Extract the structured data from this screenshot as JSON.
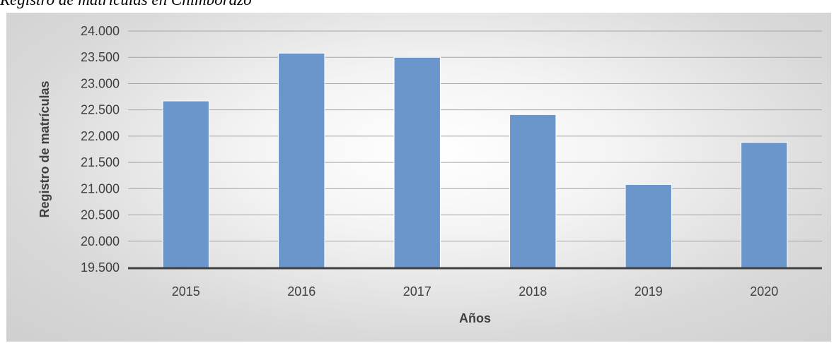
{
  "caption": "Registro de matrículas en Chimborazo",
  "chart_data": {
    "type": "bar",
    "categories": [
      "2015",
      "2016",
      "2017",
      "2018",
      "2019",
      "2020"
    ],
    "values": [
      22670,
      23580,
      23500,
      22410,
      21080,
      21880
    ],
    "title": "",
    "xlabel": "Años",
    "ylabel": "Registro de matrículas",
    "ylim": [
      19500,
      24000
    ],
    "yticks": [
      19500,
      20000,
      20500,
      21000,
      21500,
      22000,
      22500,
      23000,
      23500,
      24000
    ],
    "ytick_labels": [
      "19.500",
      "20.000",
      "20.500",
      "21.000",
      "21.500",
      "22.000",
      "22.500",
      "23.000",
      "23.500",
      "24.000"
    ],
    "grid": true,
    "legend": "none",
    "colors": {
      "bar_fill": "#6a96cc",
      "bar_edge": "#ffffff",
      "gridline": "#a6a6a6",
      "baseline": "#404040",
      "text": "#404040"
    }
  }
}
